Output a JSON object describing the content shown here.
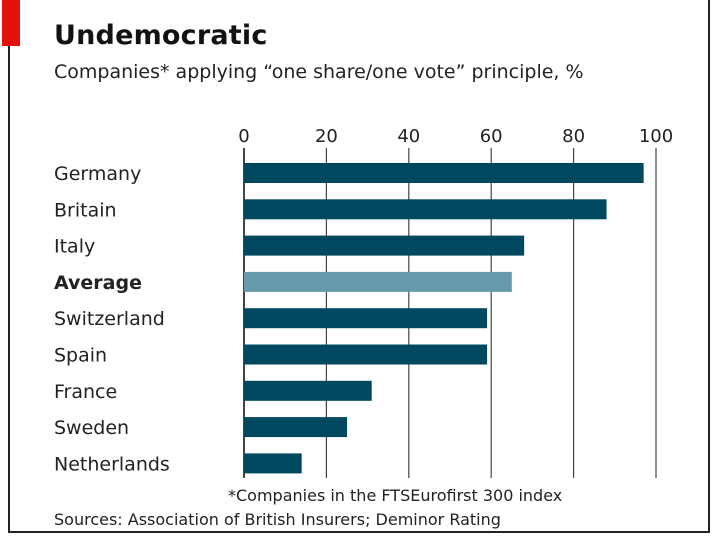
{
  "header": {
    "title": "Undemocratic",
    "subtitle": "Companies* applying “one share/one vote” principle, %"
  },
  "footer": {
    "footnote": "*Companies in the FTSEurofirst 300 index",
    "sources": "Sources: Association of British Insurers; Deminor Rating"
  },
  "colors": {
    "bar": "#00485f",
    "highlight": "#6699aa",
    "accent": "#e3120b",
    "grid": "#444444"
  },
  "chart_data": {
    "type": "bar",
    "orientation": "horizontal",
    "title": "Undemocratic",
    "subtitle": "Companies* applying “one share/one vote” principle, %",
    "categories": [
      "Germany",
      "Britain",
      "Italy",
      "Average",
      "Switzerland",
      "Spain",
      "France",
      "Sweden",
      "Netherlands"
    ],
    "values": [
      97,
      88,
      68,
      65,
      59,
      59,
      31,
      25,
      14
    ],
    "highlight": [
      "Average"
    ],
    "xlim": [
      0,
      100
    ],
    "xticks": [
      0,
      20,
      40,
      60,
      80,
      100
    ],
    "xlabel": "",
    "ylabel": "",
    "grid": true,
    "axis_position": "top"
  }
}
